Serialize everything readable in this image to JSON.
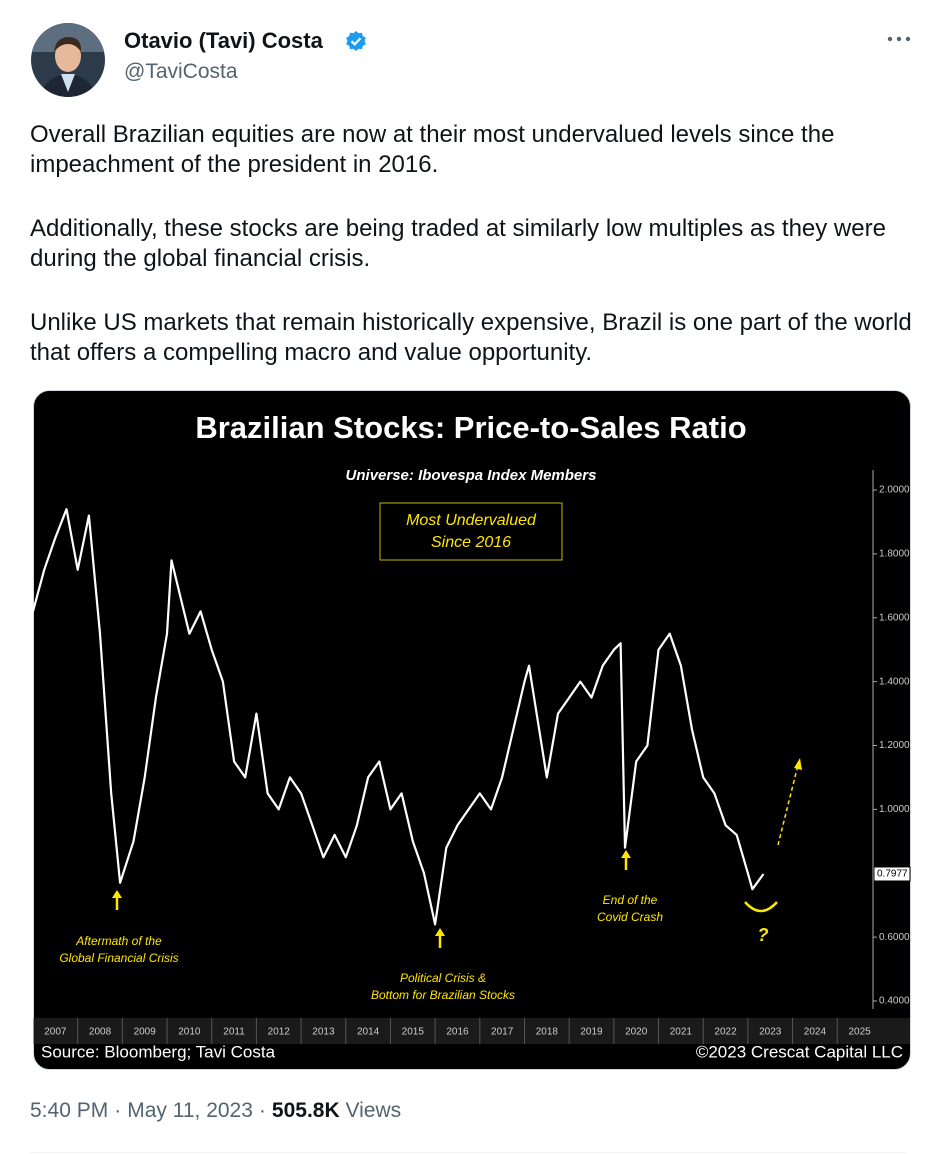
{
  "tweet": {
    "author": {
      "name": "Otavio (Tavi) Costa",
      "handle": "@TaviCosta"
    },
    "paragraphs": [
      "Overall Brazilian equities are now at their most undervalued levels since the impeachment of the president in 2016.",
      "Additionally, these stocks are being traded at similarly low multiples as they were during the global financial crisis.",
      "Unlike US markets that remain historically expensive, Brazil is one part of the world that offers a compelling macro and value opportunity."
    ],
    "meta": {
      "time": "5:40 PM",
      "date": "May 11, 2023",
      "views": "505.8K",
      "views_label": "Views"
    }
  },
  "chart_data": {
    "type": "line",
    "title": "Brazilian Stocks: Price-to-Sales Ratio",
    "subtitle": "Universe: Ibovespa Index Members",
    "source": "Source: Bloomberg; Tavi Costa",
    "copyright": "©2023 Crescat Capital LLC",
    "annotations": [
      {
        "lines": [
          "Most Undervalued",
          "Since 2016"
        ]
      },
      {
        "lines": [
          "Aftermath of the",
          "Global Financial Crisis"
        ]
      },
      {
        "lines": [
          "Political Crisis &",
          "Bottom for Brazilian Stocks"
        ]
      },
      {
        "lines": [
          "End of the",
          "Covid Crash"
        ]
      },
      {
        "lines": [
          "?"
        ]
      }
    ],
    "color": "#ffffff",
    "x": [
      2007.0,
      2007.25,
      2007.5,
      2007.75,
      2008.0,
      2008.25,
      2008.5,
      2008.75,
      2008.95,
      2009.25,
      2009.5,
      2009.75,
      2010.0,
      2010.1,
      2010.5,
      2010.75,
      2011.0,
      2011.25,
      2011.5,
      2011.75,
      2012.0,
      2012.25,
      2012.5,
      2012.75,
      2013.0,
      2013.25,
      2013.5,
      2013.75,
      2014.0,
      2014.25,
      2014.5,
      2014.75,
      2015.0,
      2015.25,
      2015.5,
      2015.75,
      2016.0,
      2016.25,
      2016.5,
      2016.75,
      2017.0,
      2017.25,
      2017.5,
      2017.75,
      2018.0,
      2018.1,
      2018.5,
      2018.75,
      2019.0,
      2019.25,
      2019.5,
      2019.75,
      2020.0,
      2020.15,
      2020.25,
      2020.5,
      2020.75,
      2021.0,
      2021.25,
      2021.5,
      2021.75,
      2022.0,
      2022.25,
      2022.5,
      2022.75,
      2023.0,
      2023.1,
      2023.35
    ],
    "values": [
      1.62,
      1.75,
      1.85,
      1.94,
      1.75,
      1.92,
      1.55,
      1.05,
      0.77,
      0.9,
      1.1,
      1.35,
      1.55,
      1.78,
      1.55,
      1.62,
      1.5,
      1.4,
      1.15,
      1.1,
      1.3,
      1.05,
      1.0,
      1.1,
      1.05,
      0.95,
      0.85,
      0.92,
      0.85,
      0.95,
      1.1,
      1.15,
      1.0,
      1.05,
      0.9,
      0.8,
      0.64,
      0.88,
      0.95,
      1.0,
      1.05,
      1.0,
      1.1,
      1.25,
      1.4,
      1.45,
      1.1,
      1.3,
      1.35,
      1.4,
      1.35,
      1.45,
      1.5,
      1.52,
      0.88,
      1.15,
      1.2,
      1.5,
      1.55,
      1.45,
      1.25,
      1.1,
      1.05,
      0.95,
      0.92,
      0.8,
      0.75,
      0.7977
    ],
    "value_labels": [
      null,
      null,
      null,
      null,
      null,
      null,
      null,
      null,
      null,
      null,
      null,
      null,
      null,
      null,
      null,
      null,
      null,
      null,
      null,
      null,
      null,
      null,
      null,
      null,
      null,
      null,
      null,
      null,
      null,
      null,
      null,
      null,
      null,
      null,
      null,
      null,
      null,
      null,
      null,
      null,
      null,
      null,
      null,
      null,
      null,
      null,
      null,
      null,
      null,
      null,
      null,
      null,
      null,
      null,
      null,
      null,
      null,
      null,
      null,
      null,
      null,
      null,
      null,
      null,
      null,
      null,
      null,
      "0.7977"
    ],
    "xlim": [
      2007,
      2025.8
    ],
    "xticks": [
      2007,
      2008,
      2009,
      2010,
      2011,
      2012,
      2013,
      2014,
      2015,
      2016,
      2017,
      2018,
      2019,
      2020,
      2021,
      2022,
      2023,
      2024,
      2025
    ],
    "ylim": [
      0.4,
      2.0
    ],
    "yticks": [
      {
        "value": 0.4,
        "label": "0.4000"
      },
      {
        "value": 0.6,
        "label": "0.6000"
      },
      {
        "value": 0.8,
        "label": "0.8000"
      },
      {
        "value": 1.0,
        "label": "1.0000"
      },
      {
        "value": 1.2,
        "label": "1.2000"
      },
      {
        "value": 1.4,
        "label": "1.4000"
      },
      {
        "value": 1.6,
        "label": "1.6000"
      },
      {
        "value": 1.8,
        "label": "1.8000"
      },
      {
        "value": 2.0,
        "label": "2.0000"
      }
    ],
    "y_axis_side": "right"
  }
}
